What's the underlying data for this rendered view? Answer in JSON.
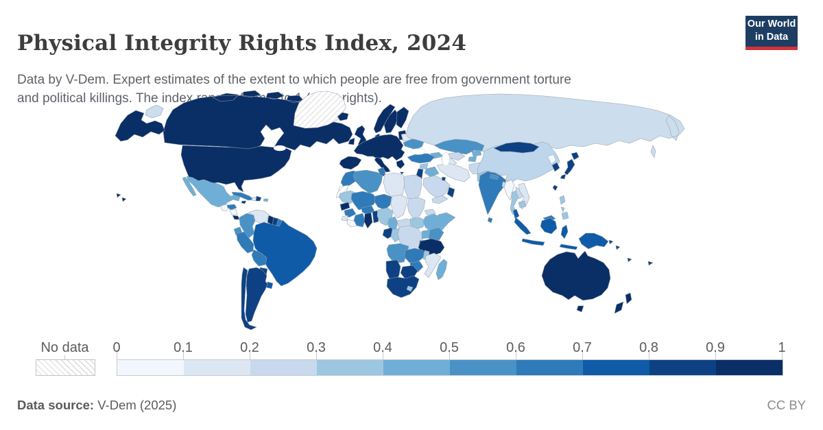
{
  "header": {
    "title": "Physical Integrity Rights Index, 2024",
    "subtitle_line1": "Data by V-Dem. Expert estimates of the extent to which people are free from government torture",
    "subtitle_line2": "and political killings. The index ranges from 0 to 1 (most rights).",
    "logo": {
      "line1": "Our World",
      "line2": "in Data",
      "bg_color": "#1d3d63",
      "accent_color": "#d13239"
    }
  },
  "legend": {
    "no_data_label": "No data",
    "ticks": [
      "0",
      "0.1",
      "0.2",
      "0.3",
      "0.4",
      "0.5",
      "0.6",
      "0.7",
      "0.8",
      "0.9",
      "1"
    ],
    "bins": [
      {
        "range": "0–0.1",
        "color": "#f2f7fd"
      },
      {
        "range": "0.1–0.2",
        "color": "#dce7f3"
      },
      {
        "range": "0.2–0.3",
        "color": "#c9d9ed"
      },
      {
        "range": "0.3–0.4",
        "color": "#9dc6e0"
      },
      {
        "range": "0.4–0.5",
        "color": "#6fafd7"
      },
      {
        "range": "0.5–0.6",
        "color": "#4a92c6"
      },
      {
        "range": "0.6–0.7",
        "color": "#2f7bba"
      },
      {
        "range": "0.7–0.8",
        "color": "#0f5ba8"
      },
      {
        "range": "0.8–0.9",
        "color": "#0d4183"
      },
      {
        "range": "0.9–1",
        "color": "#0a2e66"
      }
    ]
  },
  "footer": {
    "source_label": "Data source:",
    "source_value": " V-Dem (2025)",
    "license": "CC BY"
  },
  "map": {
    "border_color": "#97a1aa",
    "no_data_pattern": "diagonal-hatch"
  },
  "chart_data": {
    "type": "heatmap",
    "subtype": "choropleth-world-map",
    "title": "Physical Integrity Rights Index, 2024",
    "value_range": [
      0,
      1
    ],
    "legend_position": "bottom",
    "regions": {
      "canada": {
        "name": "Canada",
        "color": "#0a2e66",
        "bin": "0.9–1"
      },
      "usa": {
        "name": "United States",
        "color": "#0a2e66",
        "bin": "0.9–1"
      },
      "greenland": {
        "name": "Greenland",
        "color": "no-data",
        "bin": "No data"
      },
      "iceland": {
        "name": "Iceland",
        "color": "#0a2e66",
        "bin": "0.9–1"
      },
      "mexico": {
        "name": "Mexico",
        "color": "#6fafd7",
        "bin": "0.4–0.5"
      },
      "guatemala": {
        "name": "Guatemala",
        "color": "#f2f7fd",
        "bin": "0–0.1"
      },
      "honduras": {
        "name": "Honduras",
        "color": "#2f7bba",
        "bin": "0.6–0.7"
      },
      "nicaragua": {
        "name": "Nicaragua",
        "color": "#f2f7fd",
        "bin": "0–0.1"
      },
      "costa-rica": {
        "name": "Costa Rica",
        "color": "#0a2e66",
        "bin": "0.9–1"
      },
      "panama": {
        "name": "Panama",
        "color": "#0a2e66",
        "bin": "0.9–1"
      },
      "cuba": {
        "name": "Cuba",
        "color": "#2f7bba",
        "bin": "0.6–0.7"
      },
      "jamaica": {
        "name": "Jamaica",
        "color": "#0d4183",
        "bin": "0.8–0.9"
      },
      "haiti": {
        "name": "Haiti",
        "color": "#dce7f3",
        "bin": "0.1–0.2"
      },
      "dominican-republic": {
        "name": "Dominican Republic",
        "color": "#0d4183",
        "bin": "0.8–0.9"
      },
      "puerto-rico": {
        "name": "Puerto Rico",
        "color": "#6fafd7",
        "bin": "0.4–0.5"
      },
      "colombia": {
        "name": "Colombia",
        "color": "#4a92c6",
        "bin": "0.5–0.6"
      },
      "venezuela": {
        "name": "Venezuela",
        "color": "#dce7f3",
        "bin": "0.1–0.2"
      },
      "guyana": {
        "name": "Guyana",
        "color": "#0a2e66",
        "bin": "0.9–1"
      },
      "suriname": {
        "name": "Suriname",
        "color": "#0d4183",
        "bin": "0.8–0.9"
      },
      "french-guiana": {
        "name": "French Guiana",
        "color": "#2f7bba",
        "bin": "0.6–0.7"
      },
      "ecuador": {
        "name": "Ecuador",
        "color": "#4a92c6",
        "bin": "0.5–0.6"
      },
      "peru": {
        "name": "Peru",
        "color": "#2f7bba",
        "bin": "0.6–0.7"
      },
      "brazil": {
        "name": "Brazil",
        "color": "#0f5ba8",
        "bin": "0.7–0.8"
      },
      "bolivia": {
        "name": "Bolivia",
        "color": "#2f7bba",
        "bin": "0.6–0.7"
      },
      "paraguay": {
        "name": "Paraguay",
        "color": "#0d4183",
        "bin": "0.8–0.9"
      },
      "uruguay": {
        "name": "Uruguay",
        "color": "#0f5ba8",
        "bin": "0.7–0.8"
      },
      "argentina": {
        "name": "Argentina",
        "color": "#0d4183",
        "bin": "0.8–0.9"
      },
      "chile": {
        "name": "Chile",
        "color": "#0d4183",
        "bin": "0.8–0.9"
      },
      "united-kingdom": {
        "name": "United Kingdom",
        "color": "#0a2e66",
        "bin": "0.9–1"
      },
      "ireland": {
        "name": "Ireland",
        "color": "#0a2e66",
        "bin": "0.9–1"
      },
      "norway": {
        "name": "Norway",
        "color": "#0a2e66",
        "bin": "0.9–1"
      },
      "sweden": {
        "name": "Sweden",
        "color": "#0a2e66",
        "bin": "0.9–1"
      },
      "finland": {
        "name": "Finland",
        "color": "#0a2e66",
        "bin": "0.9–1"
      },
      "denmark": {
        "name": "Denmark",
        "color": "#0a2e66",
        "bin": "0.9–1"
      },
      "baltics": {
        "name": "Baltic states",
        "color": "#0a2e66",
        "bin": "0.9–1"
      },
      "belarus": {
        "name": "Belarus",
        "color": "#dce7f3",
        "bin": "0.1–0.2"
      },
      "western-europe": {
        "name": "Western & Central Europe",
        "color": "#0a2e66",
        "bin": "0.9–1"
      },
      "spain": {
        "name": "Spain & Portugal",
        "color": "#0a2e66",
        "bin": "0.9–1"
      },
      "italy": {
        "name": "Italy",
        "color": "#0a2e66",
        "bin": "0.9–1"
      },
      "greece": {
        "name": "Greece",
        "color": "#0a2e66",
        "bin": "0.9–1"
      },
      "ukraine": {
        "name": "Ukraine",
        "color": "#4a92c6",
        "bin": "0.5–0.6"
      },
      "russia": {
        "name": "Russia",
        "color": "#ccdded",
        "bin": "0.2–0.3"
      },
      "kazakhstan": {
        "name": "Kazakhstan",
        "color": "#4a92c6",
        "bin": "0.5–0.6"
      },
      "uzbekistan": {
        "name": "Uzbekistan",
        "color": "#c9d9ed",
        "bin": "0.2–0.3"
      },
      "turkmenistan": {
        "name": "Turkmenistan",
        "color": "#dce7f3",
        "bin": "0.1–0.2"
      },
      "kyrgyzstan": {
        "name": "Kyrgyzstan",
        "color": "#6fafd7",
        "bin": "0.4–0.5"
      },
      "tajikistan": {
        "name": "Tajikistan",
        "color": "#6fafd7",
        "bin": "0.4–0.5"
      },
      "caucasus": {
        "name": "Caucasus states",
        "color": "#6fafd7",
        "bin": "0.4–0.5"
      },
      "turkey": {
        "name": "Turkey",
        "color": "#2f7bba",
        "bin": "0.6–0.7"
      },
      "syria": {
        "name": "Syria",
        "color": "#9dc6e0",
        "bin": "0.3–0.4"
      },
      "iraq": {
        "name": "Iraq",
        "color": "#6fafd7",
        "bin": "0.4–0.5"
      },
      "israel-jordan": {
        "name": "Israel & Jordan",
        "color": "#0d4183",
        "bin": "0.8–0.9"
      },
      "saudi-arabia": {
        "name": "Saudi Arabia",
        "color": "#c9d9ed",
        "bin": "0.2–0.3"
      },
      "kuwait": {
        "name": "Kuwait",
        "color": "#0d4183",
        "bin": "0.8–0.9"
      },
      "yemen": {
        "name": "Yemen",
        "color": "#c9d9ed",
        "bin": "0.2–0.3"
      },
      "oman": {
        "name": "Oman",
        "color": "#0d4183",
        "bin": "0.8–0.9"
      },
      "iran": {
        "name": "Iran",
        "color": "#dce7f3",
        "bin": "0.1–0.2"
      },
      "afghanistan": {
        "name": "Afghanistan",
        "color": "#c9d9ed",
        "bin": "0.2–0.3"
      },
      "pakistan": {
        "name": "Pakistan",
        "color": "#9dc6e0",
        "bin": "0.3–0.4"
      },
      "india": {
        "name": "India",
        "color": "#2f7bba",
        "bin": "0.6–0.7"
      },
      "nepal": {
        "name": "Nepal",
        "color": "#4a92c6",
        "bin": "0.5–0.6"
      },
      "bangladesh": {
        "name": "Bangladesh",
        "color": "#c9d9ed",
        "bin": "0.2–0.3"
      },
      "sri-lanka": {
        "name": "Sri Lanka",
        "color": "#2f7bba",
        "bin": "0.6–0.7"
      },
      "china": {
        "name": "China",
        "color": "#bdd6ec",
        "bin": "0.2–0.3"
      },
      "mongolia": {
        "name": "Mongolia",
        "color": "#0d4183",
        "bin": "0.8–0.9"
      },
      "north-korea": {
        "name": "North Korea",
        "color": "#f2f7fd",
        "bin": "0–0.1"
      },
      "south-korea": {
        "name": "South Korea",
        "color": "#0d4183",
        "bin": "0.8–0.9"
      },
      "japan": {
        "name": "Japan",
        "color": "#0d4183",
        "bin": "0.8–0.9"
      },
      "taiwan": {
        "name": "Taiwan",
        "color": "#0d4183",
        "bin": "0.8–0.9"
      },
      "myanmar": {
        "name": "Myanmar",
        "color": "#f2f7fd",
        "bin": "0–0.1"
      },
      "thailand": {
        "name": "Thailand",
        "color": "#9dc6e0",
        "bin": "0.3–0.4"
      },
      "laos": {
        "name": "Laos",
        "color": "#c9d9ed",
        "bin": "0.2–0.3"
      },
      "vietnam": {
        "name": "Vietnam",
        "color": "#dce7f3",
        "bin": "0.1–0.2"
      },
      "cambodia": {
        "name": "Cambodia",
        "color": "#9dc6e0",
        "bin": "0.3–0.4"
      },
      "malaysia": {
        "name": "Malaysia",
        "color": "#0f5ba8",
        "bin": "0.7–0.8"
      },
      "malaysia-borneo": {
        "name": "East Malaysia",
        "color": "#2f7bba",
        "bin": "0.6–0.7"
      },
      "indonesia": {
        "name": "Indonesia",
        "color": "#0f5ba8",
        "bin": "0.7–0.8"
      },
      "philippines": {
        "name": "Philippines",
        "color": "#9dc6e0",
        "bin": "0.3–0.4"
      },
      "new-guinea": {
        "name": "Papua New Guinea",
        "color": "#0f5ba8",
        "bin": "0.7–0.8"
      },
      "australia": {
        "name": "Australia",
        "color": "#0a2e66",
        "bin": "0.9–1"
      },
      "new-zealand": {
        "name": "New Zealand",
        "color": "#0a2e66",
        "bin": "0.9–1"
      },
      "pacific-islands": {
        "name": "Pacific islands",
        "color": "#0d4183",
        "bin": "0.8–0.9"
      },
      "morocco": {
        "name": "Morocco",
        "color": "#2f7bba",
        "bin": "0.6–0.7"
      },
      "western-sahara": {
        "name": "Western Sahara",
        "color": "no-data",
        "bin": "No data"
      },
      "algeria": {
        "name": "Algeria",
        "color": "#4a92c6",
        "bin": "0.5–0.6"
      },
      "tunisia": {
        "name": "Tunisia",
        "color": "#2f7bba",
        "bin": "0.6–0.7"
      },
      "libya": {
        "name": "Libya",
        "color": "#dce7f3",
        "bin": "0.1–0.2"
      },
      "egypt": {
        "name": "Egypt",
        "color": "#c9d9ed",
        "bin": "0.2–0.3"
      },
      "mauritania": {
        "name": "Mauritania",
        "color": "#9dc6e0",
        "bin": "0.3–0.4"
      },
      "mali": {
        "name": "Mali",
        "color": "#2f7bba",
        "bin": "0.6–0.7"
      },
      "burkina-faso": {
        "name": "Burkina Faso",
        "color": "#2f7bba",
        "bin": "0.6–0.7"
      },
      "niger": {
        "name": "Niger",
        "color": "#2f7bba",
        "bin": "0.6–0.7"
      },
      "chad": {
        "name": "Chad",
        "color": "#dce7f3",
        "bin": "0.1–0.2"
      },
      "sudan": {
        "name": "Sudan",
        "color": "#c9d9ed",
        "bin": "0.2–0.3"
      },
      "eritrea": {
        "name": "Eritrea",
        "color": "#c9d9ed",
        "bin": "0.2–0.3"
      },
      "senegal": {
        "name": "Senegal",
        "color": "#0a2e66",
        "bin": "0.9–1"
      },
      "guinea": {
        "name": "Guinea",
        "color": "#2f7bba",
        "bin": "0.6–0.7"
      },
      "sierra-leone": {
        "name": "Sierra Leone",
        "color": "#dce7f3",
        "bin": "0.1–0.2"
      },
      "liberia": {
        "name": "Liberia",
        "color": "#f2f7fd",
        "bin": "0–0.1"
      },
      "ivory-coast": {
        "name": "Côte d'Ivoire",
        "color": "#2f7bba",
        "bin": "0.6–0.7"
      },
      "ghana": {
        "name": "Ghana",
        "color": "#0a2e66",
        "bin": "0.9–1"
      },
      "togo-benin": {
        "name": "Togo & Benin",
        "color": "#0d4183",
        "bin": "0.8–0.9"
      },
      "nigeria": {
        "name": "Nigeria",
        "color": "#9dc6e0",
        "bin": "0.3–0.4"
      },
      "cameroon": {
        "name": "Cameroon",
        "color": "#6fafd7",
        "bin": "0.4–0.5"
      },
      "central-african-republic": {
        "name": "Central African Republic",
        "color": "#c9d9ed",
        "bin": "0.2–0.3"
      },
      "south-sudan": {
        "name": "South Sudan",
        "color": "#9dc6e0",
        "bin": "0.3–0.4"
      },
      "ethiopia": {
        "name": "Ethiopia",
        "color": "#6fafd7",
        "bin": "0.4–0.5"
      },
      "somalia": {
        "name": "Somalia",
        "color": "#6fafd7",
        "bin": "0.4–0.5"
      },
      "gabon": {
        "name": "Gabon",
        "color": "#0d4183",
        "bin": "0.8–0.9"
      },
      "congo": {
        "name": "Congo",
        "color": "#9dc6e0",
        "bin": "0.3–0.4"
      },
      "drc": {
        "name": "Democratic Republic of Congo",
        "color": "#c9d9ed",
        "bin": "0.2–0.3"
      },
      "uganda": {
        "name": "Uganda",
        "color": "#6fafd7",
        "bin": "0.4–0.5"
      },
      "kenya": {
        "name": "Kenya",
        "color": "#4a92c6",
        "bin": "0.5–0.6"
      },
      "rwanda-burundi": {
        "name": "Rwanda & Burundi",
        "color": "#0d4183",
        "bin": "0.8–0.9"
      },
      "tanzania": {
        "name": "Tanzania",
        "color": "#0a2e66",
        "bin": "0.9–1"
      },
      "angola": {
        "name": "Angola",
        "color": "#4a92c6",
        "bin": "0.5–0.6"
      },
      "zambia": {
        "name": "Zambia",
        "color": "#2f7bba",
        "bin": "0.6–0.7"
      },
      "malawi": {
        "name": "Malawi",
        "color": "#9dc6e0",
        "bin": "0.3–0.4"
      },
      "mozambique": {
        "name": "Mozambique",
        "color": "#dce7f3",
        "bin": "0.1–0.2"
      },
      "zimbabwe": {
        "name": "Zimbabwe",
        "color": "#2f7bba",
        "bin": "0.6–0.7"
      },
      "botswana": {
        "name": "Botswana",
        "color": "#0d4183",
        "bin": "0.8–0.9"
      },
      "namibia": {
        "name": "Namibia",
        "color": "#0d4183",
        "bin": "0.8–0.9"
      },
      "south-africa": {
        "name": "South Africa",
        "color": "#0d4183",
        "bin": "0.8–0.9"
      },
      "lesotho": {
        "name": "Lesotho",
        "color": "#9dc6e0",
        "bin": "0.3–0.4"
      },
      "madagascar": {
        "name": "Madagascar",
        "color": "#6fafd7",
        "bin": "0.4–0.5"
      }
    }
  }
}
